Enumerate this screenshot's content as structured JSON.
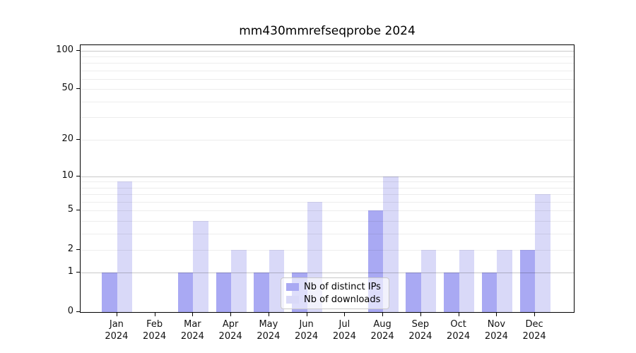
{
  "title": "mm430mmrefseqprobe 2024",
  "chart_data": {
    "type": "bar",
    "title": "mm430mmrefseqprobe 2024",
    "xlabel": "",
    "ylabel": "",
    "categories": [
      "Jan",
      "Feb",
      "Mar",
      "Apr",
      "May",
      "Jun",
      "Jul",
      "Aug",
      "Sep",
      "Oct",
      "Nov",
      "Dec"
    ],
    "category_year": "2024",
    "series": [
      {
        "name": "Nb of distinct IPs",
        "color": "#a9a9f3",
        "values": [
          1,
          0,
          1,
          1,
          1,
          1,
          0,
          5,
          1,
          1,
          1,
          2
        ]
      },
      {
        "name": "Nb of downloads",
        "color": "#d9d9f8",
        "values": [
          9,
          0,
          4,
          2,
          2,
          6,
          0,
          10,
          2,
          2,
          2,
          7
        ]
      }
    ],
    "yscale": "log1p",
    "ylim": [
      0,
      110
    ],
    "yticks": [
      0,
      1,
      2,
      5,
      10,
      20,
      50,
      100
    ],
    "grid_major": [
      1,
      10,
      100
    ],
    "grid_minor": [
      2,
      3,
      4,
      5,
      6,
      7,
      8,
      9,
      20,
      30,
      40,
      50,
      60,
      70,
      80,
      90
    ],
    "grid": "on",
    "legend_position": "inside-bottom-center"
  }
}
